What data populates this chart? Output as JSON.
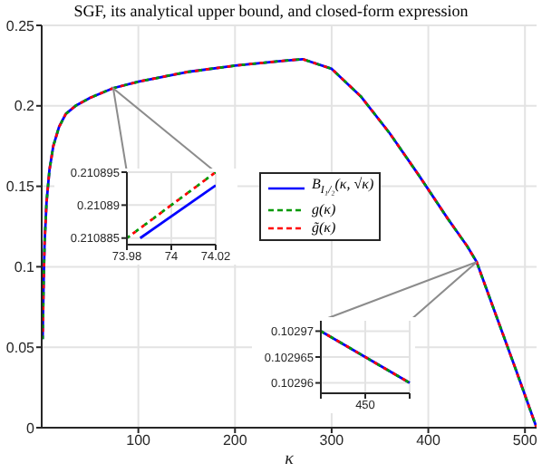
{
  "chart_data": [
    {
      "type": "line",
      "title": "SGF, its analytical upper bound, and closed-form expression",
      "xlabel": "κ",
      "x": [
        1,
        2,
        3,
        5,
        8,
        12,
        18,
        25,
        35,
        50,
        74,
        100,
        150,
        200,
        250,
        270,
        300,
        330,
        360,
        390,
        420,
        440,
        450,
        470,
        490,
        512
      ],
      "xlim": [
        0,
        512
      ],
      "xticks": [
        100,
        200,
        300,
        400,
        500
      ],
      "ylim": [
        0,
        0.25
      ],
      "yticks": [
        0,
        0.05,
        0.1,
        0.15,
        0.2,
        0.25
      ],
      "grid": true,
      "legend": "center",
      "marker": "none",
      "series": [
        {
          "name": "B$_{I₁/₂}$(κ, √κ)",
          "color": "#0000ff",
          "line_style": "solid",
          "values": [
            0.055,
            0.09,
            0.115,
            0.14,
            0.16,
            0.175,
            0.187,
            0.195,
            0.2,
            0.205,
            0.211,
            0.215,
            0.221,
            0.225,
            0.228,
            0.229,
            0.223,
            0.206,
            0.183,
            0.157,
            0.13,
            0.113,
            0.103,
            0.07,
            0.037,
            0
          ]
        },
        {
          "name": "g(κ)",
          "color": "#009900",
          "line_style": "dashed",
          "values": [
            0.055,
            0.09,
            0.115,
            0.14,
            0.16,
            0.175,
            0.187,
            0.195,
            0.2,
            0.205,
            0.211,
            0.215,
            0.221,
            0.225,
            0.228,
            0.229,
            0.223,
            0.206,
            0.183,
            0.157,
            0.13,
            0.113,
            0.103,
            0.07,
            0.037,
            0
          ]
        },
        {
          "name": "g̃(κ)",
          "color": "#ff0000",
          "line_style": "dashed",
          "values": [
            0.055,
            0.09,
            0.115,
            0.14,
            0.16,
            0.175,
            0.187,
            0.195,
            0.2,
            0.205,
            0.211,
            0.215,
            0.221,
            0.225,
            0.228,
            0.229,
            0.223,
            0.206,
            0.183,
            0.157,
            0.13,
            0.113,
            0.103,
            0.07,
            0.037,
            0
          ]
        }
      ]
    },
    {
      "type": "line",
      "xlim": [
        73.98,
        74.02
      ],
      "xticks": [
        73.98,
        74,
        74.02
      ],
      "ylim": [
        0.210884,
        0.210895
      ],
      "yticks": [
        0.210885,
        0.21089,
        0.210895
      ],
      "grid": true,
      "marker": "none",
      "series": [
        {
          "color": "#0000ff",
          "line_style": "solid",
          "x": [
            73.986,
            74.02
          ],
          "values": [
            0.210885,
            0.210893
          ]
        },
        {
          "color": "#009900",
          "line_style": "dashed",
          "x": [
            73.98,
            74.02
          ],
          "values": [
            0.210885,
            0.210895
          ]
        },
        {
          "color": "#ff0000",
          "line_style": "dashed",
          "x": [
            73.98,
            74.02
          ],
          "values": [
            0.210885,
            0.210895
          ]
        }
      ]
    },
    {
      "type": "line",
      "categories": [
        null,
        "450",
        null
      ],
      "ylim": [
        0.102958,
        0.102972
      ],
      "yticks": [
        0.10296,
        0.102965,
        0.10297
      ],
      "grid": true,
      "marker": "none",
      "series": [
        {
          "color": "#0000ff",
          "line_style": "solid",
          "values": [
            0.10297,
            0.102965,
            0.10296
          ]
        },
        {
          "color": "#009900",
          "line_style": "dashed",
          "values": [
            0.10297,
            0.102965,
            0.10296
          ]
        },
        {
          "color": "#ff0000",
          "line_style": "dashed",
          "values": [
            0.10297,
            0.102965,
            0.10296
          ]
        }
      ]
    }
  ]
}
